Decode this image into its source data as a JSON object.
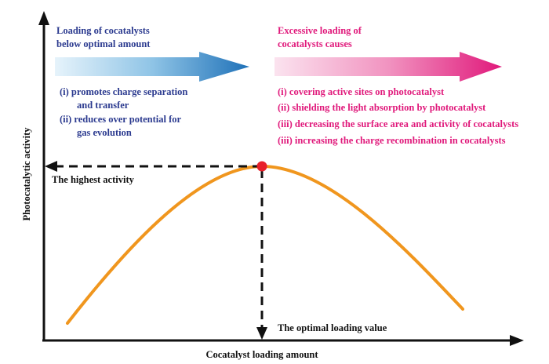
{
  "axes": {
    "x_label": "Cocatalyst loading amount",
    "y_label": "Photocatalytic activity"
  },
  "left_panel": {
    "heading_line1": "Loading of cocatalysts",
    "heading_line2": "below optimal amount",
    "items": [
      "(i) promotes charge separation",
      "and transfer",
      "(ii) reduces over potential for",
      "gas evolution"
    ],
    "color": "#2b3a8f"
  },
  "right_panel": {
    "heading_line1": "Excessive loading of",
    "heading_line2": "cocatalysts causes",
    "items": [
      "(i) covering active sites on photocatalyst",
      "(ii) shielding the light absorption by photocatalyst",
      "(iii) decreasing the surface area and activity of cocatalysts",
      "(iii) increasing the charge recombination in cocatalysts"
    ],
    "color": "#e0197b"
  },
  "annotations": {
    "highest": "The highest activity",
    "optimal": "The optimal loading value"
  },
  "colors": {
    "curve": "#f0961e",
    "peak": "#e8202a",
    "axis": "#111111"
  }
}
